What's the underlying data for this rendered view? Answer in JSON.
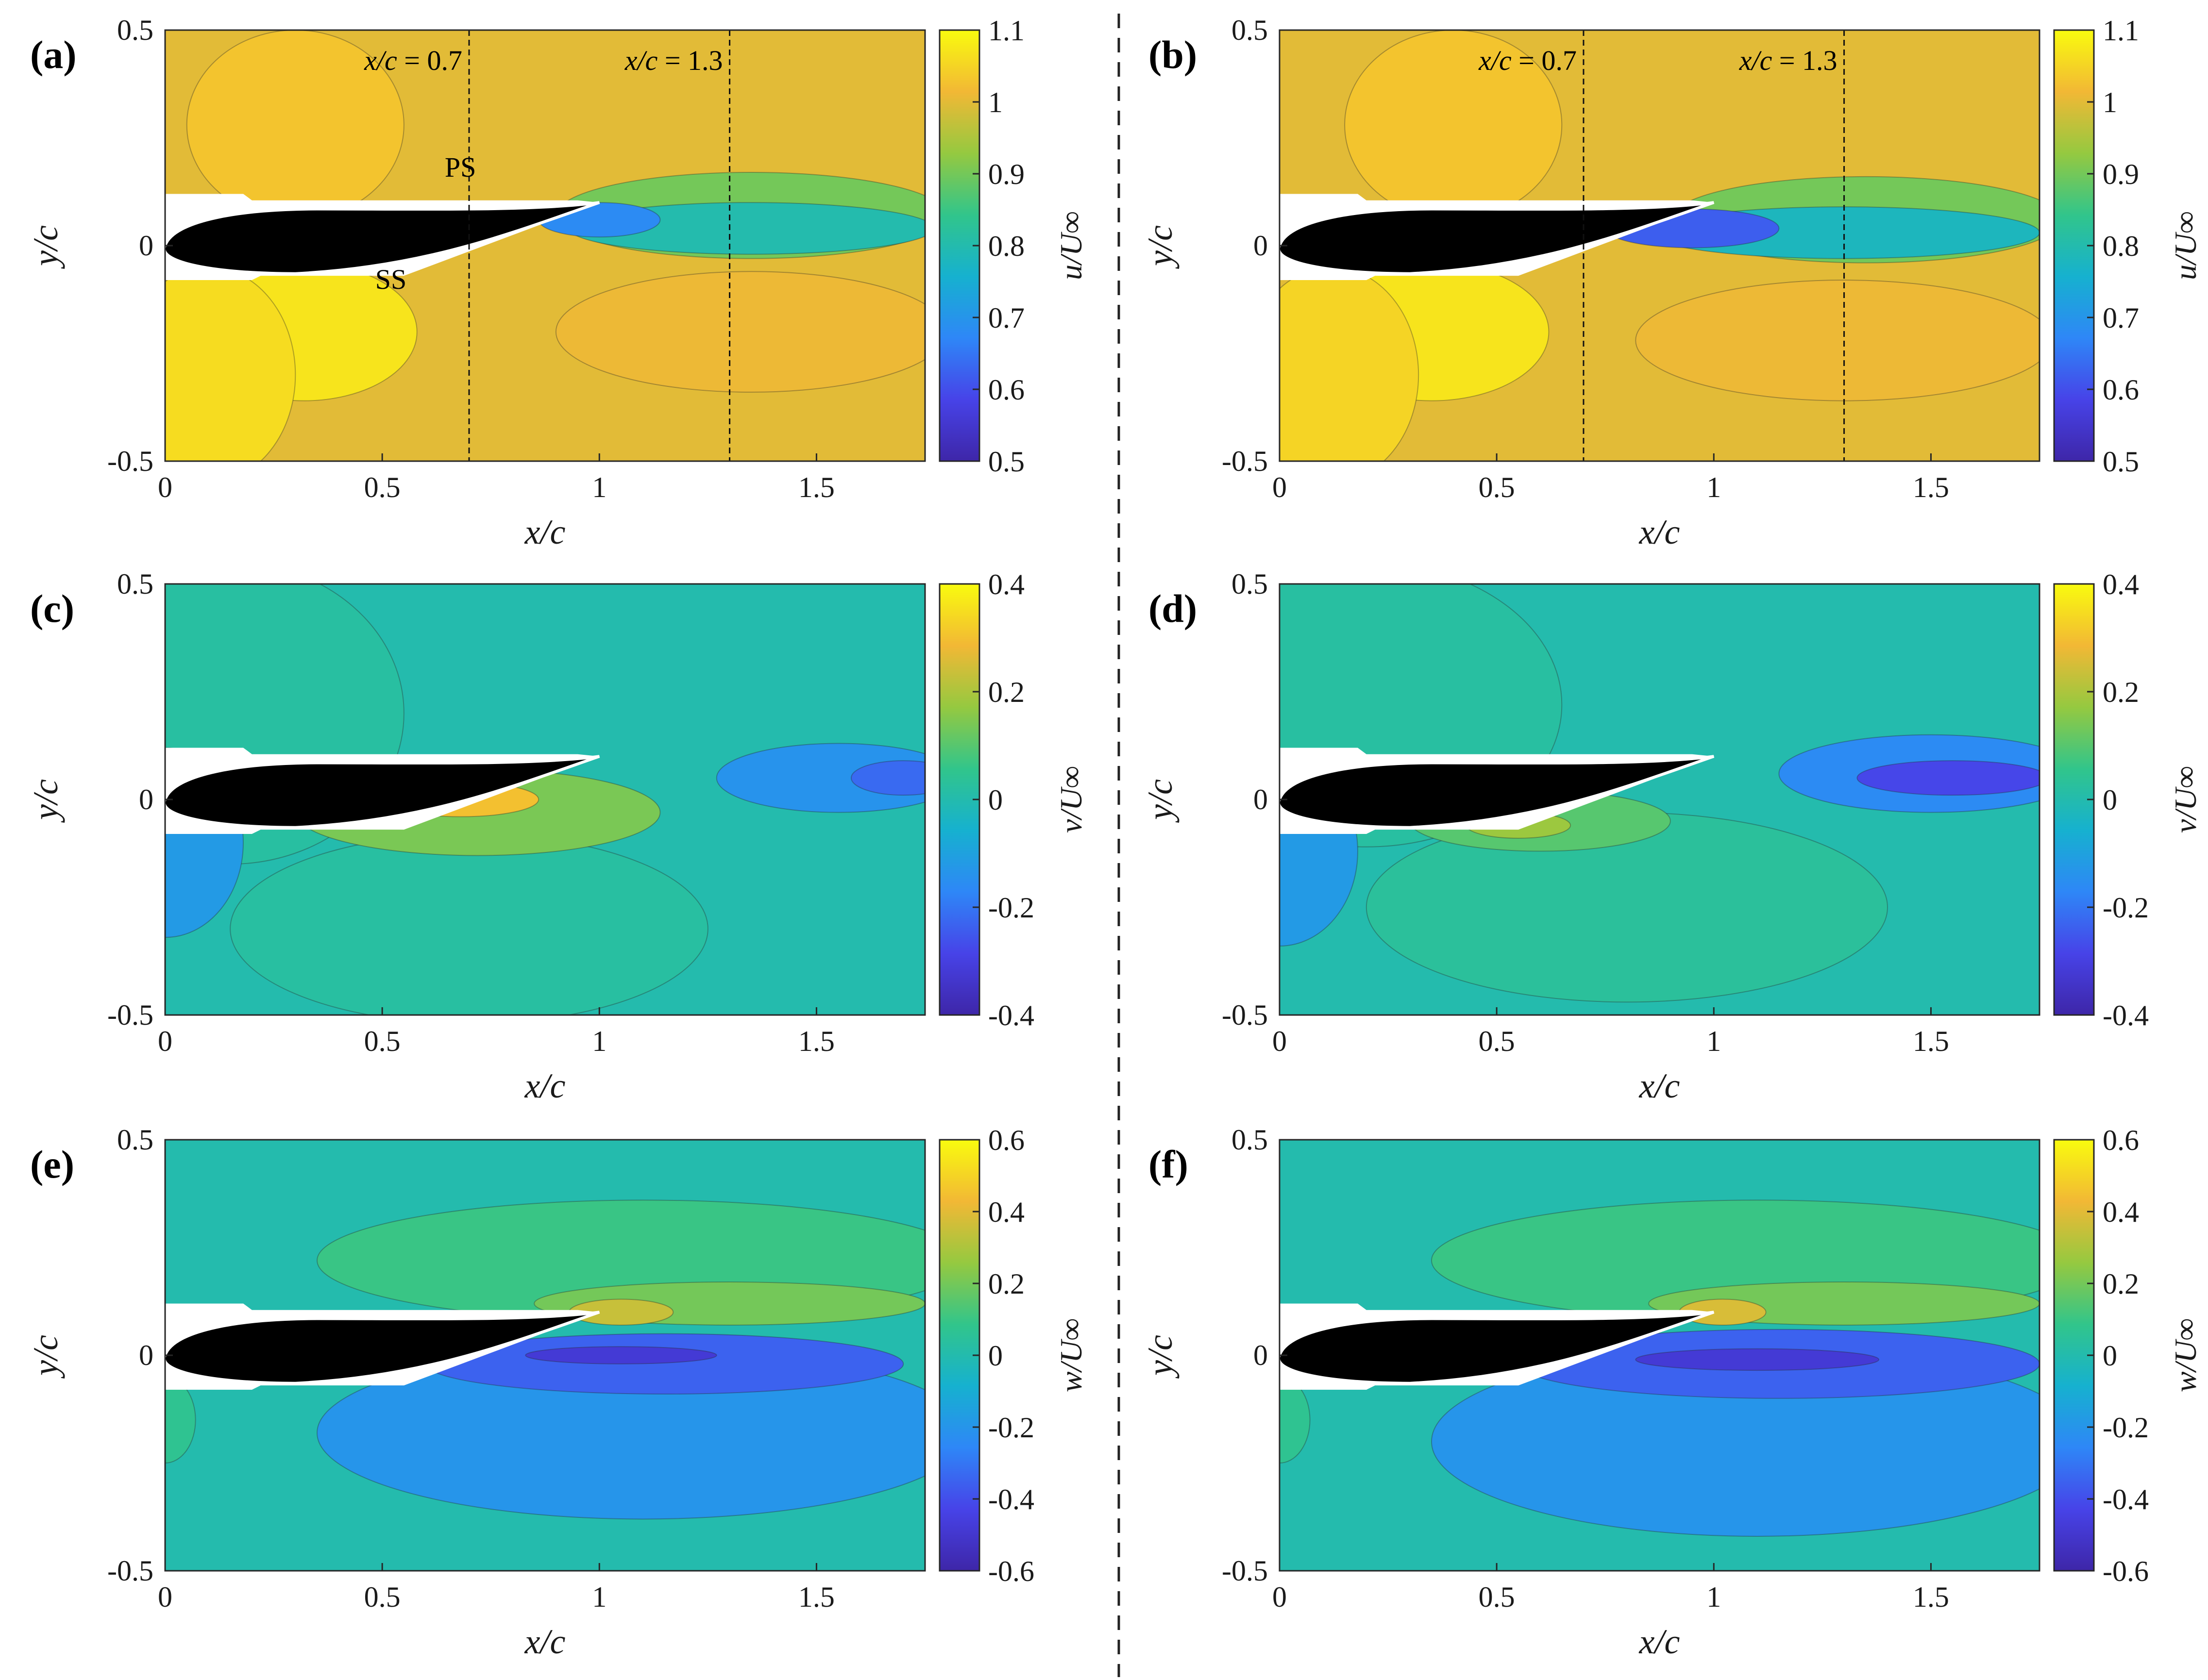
{
  "colormap": [
    "#3e26a8",
    "#4743e8",
    "#2e87f7",
    "#16b1cf",
    "#31c58b",
    "#95c940",
    "#f2b835",
    "#f9fb0e"
  ],
  "chart_data": [
    {
      "id": "a",
      "panel_label": "(a)",
      "type": "contour",
      "variable": "u",
      "colorbar_label": "u/U∞",
      "clim": [
        0.5,
        1.1
      ],
      "colorbar_ticks": [
        "0.5",
        "0.6",
        "0.7",
        "0.8",
        "0.9",
        "1",
        "1.1"
      ],
      "colorbar_values": [
        0.5,
        0.6,
        0.7,
        0.8,
        0.9,
        1.0,
        1.1
      ],
      "xlabel": "x/c",
      "ylabel": "y/c",
      "xlim": [
        0,
        1.75
      ],
      "ylim": [
        -0.5,
        0.5
      ],
      "xticks": [
        "0",
        "0.5",
        "1",
        "1.5"
      ],
      "xtick_values": [
        0,
        0.5,
        1,
        1.5
      ],
      "yticks": [
        "-0.5",
        "0",
        "0.5"
      ],
      "ytick_values": [
        -0.5,
        0,
        0.5
      ],
      "background_value": 1.0,
      "regions": [
        {
          "name": "suction-side-high",
          "value": 1.07,
          "x": 0.32,
          "y": -0.2,
          "rx": 0.26,
          "ry": 0.16
        },
        {
          "name": "pressure-side-high",
          "value": 1.03,
          "x": 0.3,
          "y": 0.28,
          "rx": 0.25,
          "ry": 0.22
        },
        {
          "name": "lower-outer-high",
          "value": 1.06,
          "x": 0.1,
          "y": -0.3,
          "rx": 0.2,
          "ry": 0.25
        },
        {
          "name": "wake-lower",
          "value": 1.01,
          "x": 1.35,
          "y": -0.2,
          "rx": 0.45,
          "ry": 0.14
        },
        {
          "name": "wake-edge",
          "value": 0.9,
          "x": 1.35,
          "y": 0.07,
          "rx": 0.45,
          "ry": 0.1
        },
        {
          "name": "wake-core",
          "value": 0.8,
          "x": 1.35,
          "y": 0.04,
          "rx": 0.42,
          "ry": 0.06
        },
        {
          "name": "wake-deficit",
          "value": 0.68,
          "x": 1.0,
          "y": 0.06,
          "rx": 0.14,
          "ry": 0.04
        }
      ],
      "reference_lines": [
        {
          "x": 0.7,
          "label_var": "x/c",
          "label_val": "= 0.7"
        },
        {
          "x": 1.3,
          "label_var": "x/c",
          "label_val": "= 1.3"
        }
      ],
      "annotations": [
        {
          "text": "PS",
          "x": 0.68,
          "y": 0.16
        },
        {
          "text": "SS",
          "x": 0.52,
          "y": -0.1
        }
      ]
    },
    {
      "id": "b",
      "panel_label": "(b)",
      "type": "contour",
      "variable": "u",
      "colorbar_label": "u/U∞",
      "clim": [
        0.5,
        1.1
      ],
      "colorbar_ticks": [
        "0.5",
        "0.6",
        "0.7",
        "0.8",
        "0.9",
        "1",
        "1.1"
      ],
      "colorbar_values": [
        0.5,
        0.6,
        0.7,
        0.8,
        0.9,
        1.0,
        1.1
      ],
      "xlabel": "x/c",
      "ylabel": "y/c",
      "xlim": [
        0,
        1.75
      ],
      "ylim": [
        -0.5,
        0.5
      ],
      "xticks": [
        "0",
        "0.5",
        "1",
        "1.5"
      ],
      "xtick_values": [
        0,
        0.5,
        1,
        1.5
      ],
      "yticks": [
        "-0.5",
        "0",
        "0.5"
      ],
      "ytick_values": [
        -0.5,
        0,
        0.5
      ],
      "background_value": 1.0,
      "regions": [
        {
          "name": "suction-side-high",
          "value": 1.07,
          "x": 0.35,
          "y": -0.2,
          "rx": 0.27,
          "ry": 0.16
        },
        {
          "name": "pressure-side-high",
          "value": 1.03,
          "x": 0.4,
          "y": 0.28,
          "rx": 0.25,
          "ry": 0.22
        },
        {
          "name": "lower-outer-high",
          "value": 1.05,
          "x": 0.12,
          "y": -0.3,
          "rx": 0.2,
          "ry": 0.25
        },
        {
          "name": "wake-lower",
          "value": 1.01,
          "x": 1.3,
          "y": -0.22,
          "rx": 0.48,
          "ry": 0.14
        },
        {
          "name": "wake-edge",
          "value": 0.9,
          "x": 1.35,
          "y": 0.06,
          "rx": 0.45,
          "ry": 0.1
        },
        {
          "name": "wake-core",
          "value": 0.78,
          "x": 1.3,
          "y": 0.03,
          "rx": 0.45,
          "ry": 0.06
        },
        {
          "name": "wake-deficit",
          "value": 0.62,
          "x": 0.95,
          "y": 0.04,
          "rx": 0.2,
          "ry": 0.045
        }
      ],
      "reference_lines": [
        {
          "x": 0.7,
          "label_var": "x/c",
          "label_val": "= 0.7"
        },
        {
          "x": 1.3,
          "label_var": "x/c",
          "label_val": "= 1.3"
        }
      ],
      "annotations": []
    },
    {
      "id": "c",
      "panel_label": "(c)",
      "type": "contour",
      "variable": "v",
      "colorbar_label": "v/U∞",
      "clim": [
        -0.4,
        0.4
      ],
      "colorbar_ticks": [
        "-0.4",
        "-0.2",
        "0",
        "0.2",
        "0.4"
      ],
      "colorbar_values": [
        -0.4,
        -0.2,
        0,
        0.2,
        0.4
      ],
      "xlabel": "x/c",
      "ylabel": "y/c",
      "xlim": [
        0,
        1.75
      ],
      "ylim": [
        -0.5,
        0.5
      ],
      "xticks": [
        "0",
        "0.5",
        "1",
        "1.5"
      ],
      "xtick_values": [
        0,
        0.5,
        1,
        1.5
      ],
      "yticks": [
        "-0.5",
        "0",
        "0.5"
      ],
      "ytick_values": [
        -0.5,
        0,
        0.5
      ],
      "background_value": 0.0,
      "regions": [
        {
          "name": "outer-left",
          "value": 0.02,
          "x": 0.15,
          "y": 0.2,
          "rx": 0.4,
          "ry": 0.35
        },
        {
          "name": "lower-mid",
          "value": 0.02,
          "x": 0.7,
          "y": -0.3,
          "rx": 0.55,
          "ry": 0.22
        },
        {
          "name": "leading-edge-low",
          "value": -0.12,
          "x": 0.0,
          "y": -0.1,
          "rx": 0.18,
          "ry": 0.22
        },
        {
          "name": "wake-low",
          "value": -0.14,
          "x": 1.55,
          "y": 0.05,
          "rx": 0.28,
          "ry": 0.08
        },
        {
          "name": "wake-strong-low",
          "value": -0.22,
          "x": 1.7,
          "y": 0.05,
          "rx": 0.12,
          "ry": 0.04
        },
        {
          "name": "suction-surface-high",
          "value": 0.14,
          "x": 0.72,
          "y": -0.03,
          "rx": 0.42,
          "ry": 0.1
        },
        {
          "name": "suction-surface-peak",
          "value": 0.3,
          "x": 0.68,
          "y": 0.0,
          "rx": 0.18,
          "ry": 0.04
        }
      ],
      "reference_lines": [],
      "annotations": []
    },
    {
      "id": "d",
      "panel_label": "(d)",
      "type": "contour",
      "variable": "v",
      "colorbar_label": "v/U∞",
      "clim": [
        -0.4,
        0.4
      ],
      "colorbar_ticks": [
        "-0.4",
        "-0.2",
        "0",
        "0.2",
        "0.4"
      ],
      "colorbar_values": [
        -0.4,
        -0.2,
        0,
        0.2,
        0.4
      ],
      "xlabel": "x/c",
      "ylabel": "y/c",
      "xlim": [
        0,
        1.75
      ],
      "ylim": [
        -0.5,
        0.5
      ],
      "xticks": [
        "0",
        "0.5",
        "1",
        "1.5"
      ],
      "xtick_values": [
        0,
        0.5,
        1,
        1.5
      ],
      "yticks": [
        "-0.5",
        "0",
        "0.5"
      ],
      "ytick_values": [
        -0.5,
        0,
        0.5
      ],
      "background_value": 0.0,
      "regions": [
        {
          "name": "outer-left",
          "value": 0.02,
          "x": 0.2,
          "y": 0.22,
          "rx": 0.45,
          "ry": 0.33
        },
        {
          "name": "lower-mid",
          "value": 0.03,
          "x": 0.8,
          "y": -0.25,
          "rx": 0.6,
          "ry": 0.22
        },
        {
          "name": "leading-edge-low",
          "value": -0.12,
          "x": 0.0,
          "y": -0.12,
          "rx": 0.18,
          "ry": 0.22
        },
        {
          "name": "wake-low",
          "value": -0.16,
          "x": 1.5,
          "y": 0.06,
          "rx": 0.35,
          "ry": 0.09
        },
        {
          "name": "wake-strong-low",
          "value": -0.28,
          "x": 1.55,
          "y": 0.05,
          "rx": 0.22,
          "ry": 0.04
        },
        {
          "name": "suction-surface-high",
          "value": 0.1,
          "x": 0.6,
          "y": -0.05,
          "rx": 0.3,
          "ry": 0.07
        },
        {
          "name": "suction-surface-peak",
          "value": 0.18,
          "x": 0.55,
          "y": -0.06,
          "rx": 0.12,
          "ry": 0.03
        }
      ],
      "reference_lines": [],
      "annotations": []
    },
    {
      "id": "e",
      "panel_label": "(e)",
      "type": "contour",
      "variable": "w",
      "colorbar_label": "w/U∞",
      "clim": [
        -0.6,
        0.6
      ],
      "colorbar_ticks": [
        "-0.6",
        "-0.4",
        "-0.2",
        "0",
        "0.2",
        "0.4",
        "0.6"
      ],
      "colorbar_values": [
        -0.6,
        -0.4,
        -0.2,
        0,
        0.2,
        0.4,
        0.6
      ],
      "xlabel": "x/c",
      "ylabel": "y/c",
      "xlim": [
        0,
        1.75
      ],
      "ylim": [
        -0.5,
        0.5
      ],
      "xticks": [
        "0",
        "0.5",
        "1",
        "1.5"
      ],
      "xtick_values": [
        0,
        0.5,
        1,
        1.5
      ],
      "yticks": [
        "-0.5",
        "0",
        "0.5"
      ],
      "ytick_values": [
        -0.5,
        0,
        0.5
      ],
      "background_value": 0.0,
      "regions": [
        {
          "name": "upper-band",
          "value": 0.1,
          "x": 1.1,
          "y": 0.22,
          "rx": 0.75,
          "ry": 0.14
        },
        {
          "name": "upper-near-wake",
          "value": 0.2,
          "x": 1.3,
          "y": 0.12,
          "rx": 0.45,
          "ry": 0.05
        },
        {
          "name": "tip-high",
          "value": 0.35,
          "x": 1.05,
          "y": 0.1,
          "rx": 0.12,
          "ry": 0.03
        },
        {
          "name": "lower-band",
          "value": -0.2,
          "x": 1.1,
          "y": -0.18,
          "rx": 0.75,
          "ry": 0.2
        },
        {
          "name": "lower-core",
          "value": -0.35,
          "x": 1.15,
          "y": -0.02,
          "rx": 0.55,
          "ry": 0.07
        },
        {
          "name": "lower-peak",
          "value": -0.48,
          "x": 1.05,
          "y": 0.0,
          "rx": 0.22,
          "ry": 0.02
        },
        {
          "name": "leading-edge-high",
          "value": 0.07,
          "x": 0.0,
          "y": -0.15,
          "rx": 0.07,
          "ry": 0.1
        }
      ],
      "reference_lines": [],
      "annotations": []
    },
    {
      "id": "f",
      "panel_label": "(f)",
      "type": "contour",
      "variable": "w",
      "colorbar_label": "w/U∞",
      "clim": [
        -0.6,
        0.6
      ],
      "colorbar_ticks": [
        "-0.6",
        "-0.4",
        "-0.2",
        "0",
        "0.2",
        "0.4",
        "0.6"
      ],
      "colorbar_values": [
        -0.6,
        -0.4,
        -0.2,
        0,
        0.2,
        0.4,
        0.6
      ],
      "xlabel": "x/c",
      "ylabel": "y/c",
      "xlim": [
        0,
        1.75
      ],
      "ylim": [
        -0.5,
        0.5
      ],
      "xticks": [
        "0",
        "0.5",
        "1",
        "1.5"
      ],
      "xtick_values": [
        0,
        0.5,
        1,
        1.5
      ],
      "yticks": [
        "-0.5",
        "0",
        "0.5"
      ],
      "ytick_values": [
        -0.5,
        0,
        0.5
      ],
      "background_value": 0.0,
      "regions": [
        {
          "name": "upper-band",
          "value": 0.1,
          "x": 1.1,
          "y": 0.22,
          "rx": 0.75,
          "ry": 0.14
        },
        {
          "name": "upper-near-wake",
          "value": 0.2,
          "x": 1.3,
          "y": 0.12,
          "rx": 0.45,
          "ry": 0.05
        },
        {
          "name": "tip-high",
          "value": 0.38,
          "x": 1.02,
          "y": 0.1,
          "rx": 0.1,
          "ry": 0.03
        },
        {
          "name": "lower-band",
          "value": -0.2,
          "x": 1.1,
          "y": -0.2,
          "rx": 0.75,
          "ry": 0.22
        },
        {
          "name": "lower-core",
          "value": -0.35,
          "x": 1.15,
          "y": -0.02,
          "rx": 0.6,
          "ry": 0.08
        },
        {
          "name": "lower-peak",
          "value": -0.48,
          "x": 1.1,
          "y": -0.01,
          "rx": 0.28,
          "ry": 0.025
        },
        {
          "name": "leading-edge-high",
          "value": 0.07,
          "x": 0.0,
          "y": -0.15,
          "rx": 0.07,
          "ry": 0.1
        }
      ],
      "reference_lines": [],
      "annotations": []
    }
  ]
}
